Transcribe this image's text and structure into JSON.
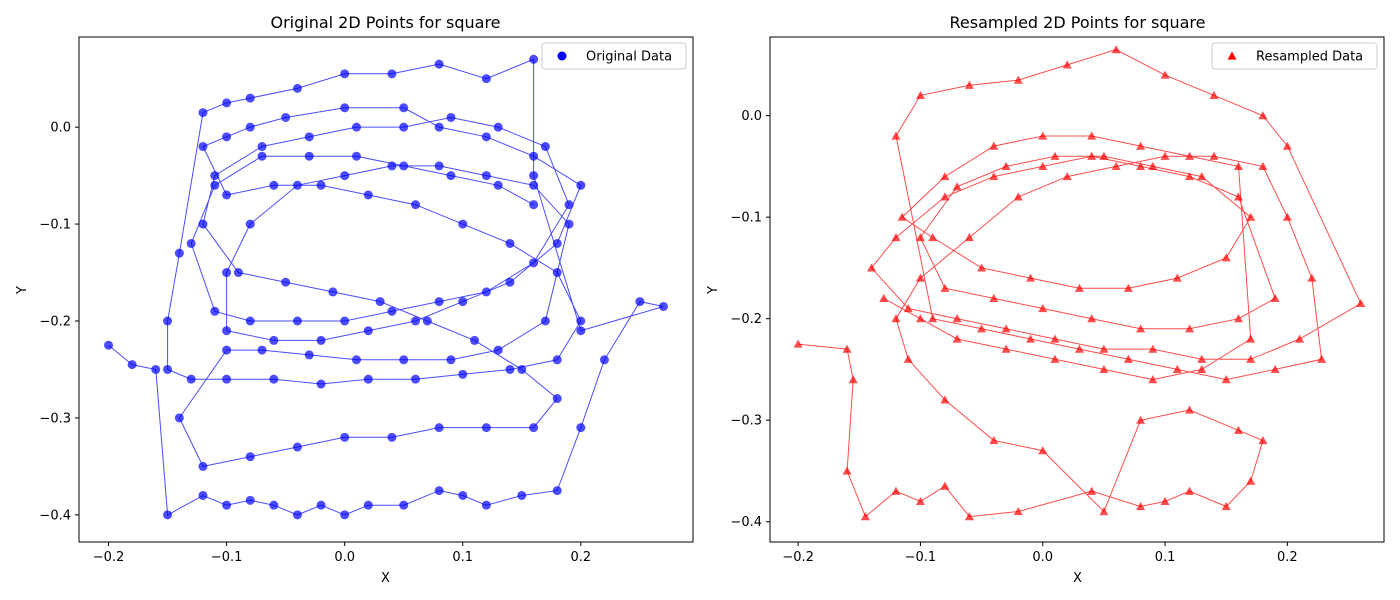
{
  "chart_data": [
    {
      "type": "scatter",
      "title": "Original 2D Points for square",
      "xlabel": "X",
      "ylabel": "Y",
      "xlim": [
        -0.225,
        0.295
      ],
      "ylim": [
        -0.428,
        0.093
      ],
      "xticks": [
        "−0.2",
        "−0.1",
        "0.0",
        "0.1",
        "0.2"
      ],
      "xtick_values": [
        -0.2,
        -0.1,
        0.0,
        0.1,
        0.2
      ],
      "yticks": [
        "−0.4",
        "−0.3",
        "−0.2",
        "−0.1",
        "0.0"
      ],
      "ytick_values": [
        -0.4,
        -0.3,
        -0.2,
        -0.1,
        0.0
      ],
      "grid": false,
      "legend": "top-right",
      "series": [
        {
          "name": "Original Data",
          "marker": "circle",
          "color": "#0000ff",
          "connected": true,
          "x": [
            -0.2,
            -0.18,
            -0.16,
            -0.15,
            -0.12,
            -0.1,
            -0.08,
            -0.06,
            -0.04,
            -0.02,
            0.0,
            0.02,
            0.05,
            0.08,
            0.1,
            0.12,
            0.15,
            0.18,
            0.2,
            0.22,
            0.25,
            0.27,
            0.2,
            0.16,
            0.16,
            0.12,
            0.08,
            0.04,
            0.0,
            -0.04,
            -0.08,
            -0.1,
            -0.12,
            -0.14,
            -0.15,
            -0.15,
            -0.13,
            -0.1,
            -0.06,
            -0.02,
            0.02,
            0.06,
            0.1,
            0.14,
            0.18,
            0.2,
            0.18,
            0.14,
            0.1,
            0.06,
            0.02,
            -0.02,
            -0.06,
            -0.1,
            -0.12,
            -0.1,
            -0.08,
            -0.05,
            0.0,
            0.05,
            0.08,
            0.12,
            0.16,
            0.2,
            0.18,
            0.14,
            0.1,
            0.06,
            0.02,
            -0.02,
            -0.06,
            -0.1,
            -0.1,
            -0.08,
            -0.04,
            0.0,
            0.04,
            0.08,
            0.12,
            0.16,
            0.19,
            0.17,
            0.13,
            0.09,
            0.05,
            0.01,
            -0.03,
            -0.07,
            -0.1,
            -0.14,
            -0.12,
            -0.08,
            -0.04,
            0.0,
            0.04,
            0.08,
            0.12,
            0.16,
            0.18,
            0.15,
            0.11,
            0.07,
            0.03,
            -0.01,
            -0.05,
            -0.09,
            -0.12,
            -0.11,
            -0.07,
            -0.03,
            0.01,
            0.05,
            0.09,
            0.13,
            0.17,
            0.19,
            0.16,
            0.12,
            0.08,
            0.04,
            0.0,
            -0.04,
            -0.08,
            -0.11,
            -0.13,
            -0.11,
            -0.07,
            -0.03,
            0.01,
            0.05,
            0.09,
            0.13,
            0.16
          ],
          "y": [
            -0.225,
            -0.245,
            -0.25,
            -0.4,
            -0.38,
            -0.39,
            -0.385,
            -0.39,
            -0.4,
            -0.39,
            -0.4,
            -0.39,
            -0.39,
            -0.375,
            -0.38,
            -0.39,
            -0.38,
            -0.375,
            -0.31,
            -0.24,
            -0.18,
            -0.185,
            -0.21,
            -0.05,
            0.07,
            0.05,
            0.065,
            0.055,
            0.055,
            0.04,
            0.03,
            0.025,
            0.015,
            -0.13,
            -0.2,
            -0.25,
            -0.26,
            -0.26,
            -0.26,
            -0.265,
            -0.26,
            -0.26,
            -0.255,
            -0.25,
            -0.24,
            -0.2,
            -0.15,
            -0.12,
            -0.1,
            -0.08,
            -0.07,
            -0.06,
            -0.06,
            -0.07,
            -0.02,
            -0.01,
            0.0,
            0.01,
            0.02,
            0.02,
            0.0,
            -0.01,
            -0.03,
            -0.06,
            -0.12,
            -0.16,
            -0.18,
            -0.2,
            -0.21,
            -0.22,
            -0.22,
            -0.21,
            -0.15,
            -0.1,
            -0.06,
            -0.05,
            -0.04,
            -0.04,
            -0.05,
            -0.06,
            -0.1,
            -0.2,
            -0.23,
            -0.24,
            -0.24,
            -0.24,
            -0.235,
            -0.23,
            -0.23,
            -0.3,
            -0.35,
            -0.34,
            -0.33,
            -0.32,
            -0.32,
            -0.31,
            -0.31,
            -0.31,
            -0.28,
            -0.25,
            -0.22,
            -0.2,
            -0.18,
            -0.17,
            -0.16,
            -0.15,
            -0.1,
            -0.05,
            -0.02,
            -0.01,
            0.0,
            0.0,
            0.01,
            0.0,
            -0.02,
            -0.08,
            -0.14,
            -0.17,
            -0.18,
            -0.19,
            -0.2,
            -0.2,
            -0.2,
            -0.19,
            -0.12,
            -0.06,
            -0.03,
            -0.03,
            -0.03,
            -0.04,
            -0.05,
            -0.06,
            -0.08
          ]
        }
      ]
    },
    {
      "type": "scatter",
      "title": "Resampled 2D Points for square",
      "xlabel": "X",
      "ylabel": "Y",
      "xlim": [
        -0.223,
        0.279
      ],
      "ylim": [
        -0.42,
        0.0775
      ],
      "xticks": [
        "−0.2",
        "−0.1",
        "0.0",
        "0.1",
        "0.2"
      ],
      "xtick_values": [
        -0.2,
        -0.1,
        0.0,
        0.1,
        0.2
      ],
      "yticks": [
        "−0.4",
        "−0.3",
        "−0.2",
        "−0.1",
        "0.0"
      ],
      "ytick_values": [
        -0.4,
        -0.3,
        -0.2,
        -0.1,
        0.0
      ],
      "grid": false,
      "legend": "top-right",
      "series": [
        {
          "name": "Resampled Data",
          "marker": "triangle",
          "color": "#ff0000",
          "connected": true,
          "x": [
            -0.2,
            -0.16,
            -0.155,
            -0.16,
            -0.145,
            -0.12,
            -0.1,
            -0.08,
            -0.06,
            -0.02,
            0.04,
            0.08,
            0.1,
            0.12,
            0.15,
            0.17,
            0.18,
            0.16,
            0.12,
            0.08,
            0.05,
            0.0,
            -0.04,
            -0.08,
            -0.11,
            -0.12,
            -0.1,
            -0.06,
            -0.02,
            0.02,
            0.06,
            0.1,
            0.14,
            0.18,
            0.2,
            0.22,
            0.228,
            0.19,
            0.15,
            0.11,
            0.07,
            0.03,
            -0.01,
            -0.05,
            -0.09,
            -0.12,
            -0.1,
            -0.06,
            -0.02,
            0.02,
            0.06,
            0.1,
            0.14,
            0.18,
            0.2,
            0.26,
            0.21,
            0.17,
            0.13,
            0.09,
            0.05,
            0.01,
            -0.03,
            -0.07,
            -0.11,
            -0.14,
            -0.12,
            -0.08,
            -0.04,
            0.0,
            0.04,
            0.08,
            0.12,
            0.16,
            0.19,
            0.16,
            0.12,
            0.08,
            0.04,
            0.0,
            -0.04,
            -0.08,
            -0.1,
            -0.07,
            -0.03,
            0.01,
            0.05,
            0.09,
            0.13,
            0.17,
            0.15,
            0.11,
            0.07,
            0.03,
            -0.01,
            -0.05,
            -0.09,
            -0.115,
            -0.08,
            -0.04,
            0.0,
            0.04,
            0.08,
            0.12,
            0.16,
            0.17,
            0.13,
            0.09,
            0.05,
            0.01,
            -0.03,
            -0.07,
            -0.1,
            -0.13
          ],
          "y": [
            -0.225,
            -0.23,
            -0.26,
            -0.35,
            -0.395,
            -0.37,
            -0.38,
            -0.365,
            -0.395,
            -0.39,
            -0.37,
            -0.385,
            -0.38,
            -0.37,
            -0.385,
            -0.36,
            -0.32,
            -0.31,
            -0.29,
            -0.3,
            -0.39,
            -0.33,
            -0.32,
            -0.28,
            -0.24,
            -0.2,
            -0.16,
            -0.12,
            -0.08,
            -0.06,
            -0.05,
            -0.04,
            -0.04,
            -0.05,
            -0.1,
            -0.16,
            -0.24,
            -0.25,
            -0.26,
            -0.25,
            -0.24,
            -0.23,
            -0.22,
            -0.21,
            -0.2,
            -0.02,
            0.02,
            0.03,
            0.035,
            0.05,
            0.065,
            0.04,
            0.02,
            0.0,
            -0.03,
            -0.185,
            -0.22,
            -0.24,
            -0.24,
            -0.23,
            -0.23,
            -0.22,
            -0.21,
            -0.2,
            -0.19,
            -0.15,
            -0.12,
            -0.08,
            -0.06,
            -0.05,
            -0.04,
            -0.05,
            -0.06,
            -0.08,
            -0.18,
            -0.2,
            -0.21,
            -0.21,
            -0.2,
            -0.19,
            -0.18,
            -0.17,
            -0.12,
            -0.07,
            -0.05,
            -0.04,
            -0.04,
            -0.05,
            -0.06,
            -0.1,
            -0.14,
            -0.16,
            -0.17,
            -0.17,
            -0.16,
            -0.15,
            -0.12,
            -0.1,
            -0.06,
            -0.03,
            -0.02,
            -0.02,
            -0.03,
            -0.04,
            -0.05,
            -0.22,
            -0.25,
            -0.26,
            -0.25,
            -0.24,
            -0.23,
            -0.22,
            -0.2,
            -0.18
          ]
        }
      ]
    }
  ]
}
